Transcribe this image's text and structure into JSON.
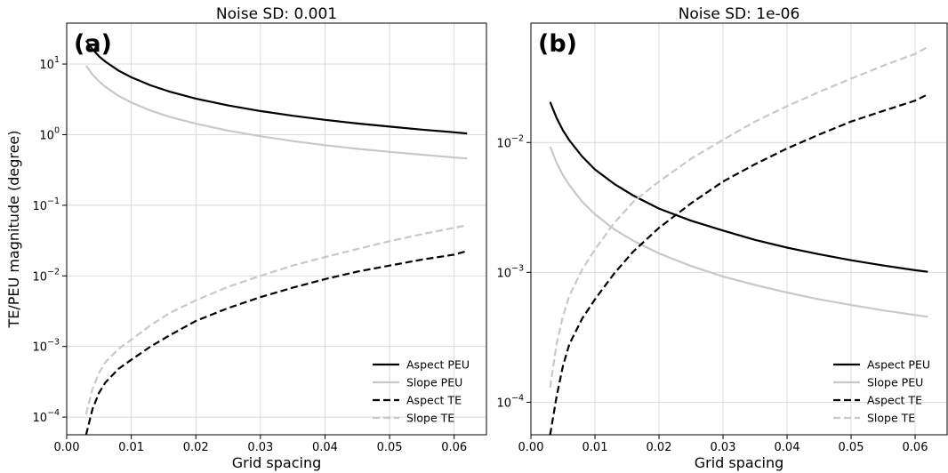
{
  "chart_data": [
    {
      "type": "line",
      "panel_label": "(a)",
      "title": "Noise SD: 0.001",
      "xlabel": "Grid spacing",
      "ylabel": "TE/PEU magnitude (degree)",
      "x_scale": "linear",
      "y_scale": "log",
      "xlim": [
        0.0,
        0.065
      ],
      "ylim": [
        5.62e-05,
        38
      ],
      "x_ticks": [
        "0.00",
        "0.01",
        "0.02",
        "0.03",
        "0.04",
        "0.05",
        "0.06"
      ],
      "x_tick_values": [
        0.0,
        0.01,
        0.02,
        0.03,
        0.04,
        0.05,
        0.06
      ],
      "y_ticks": [
        "10^1",
        "10^0",
        "10^-1",
        "10^-2",
        "10^-3",
        "10^-4"
      ],
      "y_tick_values": [
        10,
        1,
        0.1,
        0.01,
        0.001,
        0.0001
      ],
      "grid": true,
      "legend_position": "lower-right",
      "series": [
        {
          "name": "Aspect PEU",
          "color": "#000000",
          "dash": "solid",
          "x": [
            0.003,
            0.004,
            0.005,
            0.006,
            0.008,
            0.01,
            0.013,
            0.016,
            0.02,
            0.025,
            0.03,
            0.035,
            0.04,
            0.045,
            0.05,
            0.055,
            0.06,
            0.062
          ],
          "y": [
            21.5,
            16.2,
            12.9,
            10.8,
            8.1,
            6.5,
            5.0,
            4.05,
            3.24,
            2.59,
            2.16,
            1.85,
            1.62,
            1.44,
            1.3,
            1.18,
            1.08,
            1.04
          ]
        },
        {
          "name": "Slope PEU",
          "color": "#c8c8c8",
          "dash": "solid",
          "x": [
            0.003,
            0.004,
            0.005,
            0.006,
            0.008,
            0.01,
            0.013,
            0.016,
            0.02,
            0.025,
            0.03,
            0.035,
            0.04,
            0.045,
            0.05,
            0.055,
            0.06,
            0.062
          ],
          "y": [
            9.5,
            7.1,
            5.7,
            4.75,
            3.56,
            2.85,
            2.19,
            1.78,
            1.43,
            1.14,
            0.95,
            0.81,
            0.71,
            0.63,
            0.57,
            0.52,
            0.475,
            0.46
          ]
        },
        {
          "name": "Aspect TE",
          "color": "#000000",
          "dash": "dashed",
          "x": [
            0.003,
            0.004,
            0.005,
            0.006,
            0.008,
            0.01,
            0.013,
            0.016,
            0.02,
            0.025,
            0.03,
            0.035,
            0.04,
            0.045,
            0.05,
            0.055,
            0.06,
            0.062
          ],
          "y": [
            5.6e-05,
            0.00013,
            0.00022,
            0.00031,
            0.00048,
            0.00065,
            0.001,
            0.00145,
            0.0023,
            0.0035,
            0.005,
            0.0068,
            0.009,
            0.0115,
            0.014,
            0.017,
            0.02,
            0.0225
          ]
        },
        {
          "name": "Slope TE",
          "color": "#c8c8c8",
          "dash": "dashed",
          "x": [
            0.003,
            0.004,
            0.005,
            0.006,
            0.008,
            0.01,
            0.013,
            0.016,
            0.02,
            0.025,
            0.03,
            0.035,
            0.04,
            0.045,
            0.05,
            0.055,
            0.06,
            0.062
          ],
          "y": [
            0.00011,
            0.00025,
            0.00042,
            0.0006,
            0.00092,
            0.00125,
            0.002,
            0.003,
            0.0045,
            0.007,
            0.01,
            0.014,
            0.0185,
            0.024,
            0.031,
            0.039,
            0.048,
            0.052
          ]
        }
      ]
    },
    {
      "type": "line",
      "panel_label": "(b)",
      "title": "Noise SD: 1e-06",
      "xlabel": "Grid spacing",
      "ylabel": "",
      "x_scale": "linear",
      "y_scale": "log",
      "xlim": [
        0.0,
        0.065
      ],
      "ylim": [
        5.62e-05,
        0.083
      ],
      "x_ticks": [
        "0.00",
        "0.01",
        "0.02",
        "0.03",
        "0.04",
        "0.05",
        "0.06"
      ],
      "x_tick_values": [
        0.0,
        0.01,
        0.02,
        0.03,
        0.04,
        0.05,
        0.06
      ],
      "y_ticks": [
        "10^-2",
        "10^-3",
        "10^-4"
      ],
      "y_tick_values": [
        0.01,
        0.001,
        0.0001
      ],
      "grid": true,
      "legend_position": "lower-right",
      "series": [
        {
          "name": "Aspect PEU",
          "color": "#000000",
          "dash": "solid",
          "x": [
            0.003,
            0.004,
            0.005,
            0.006,
            0.008,
            0.01,
            0.013,
            0.016,
            0.02,
            0.025,
            0.03,
            0.035,
            0.04,
            0.045,
            0.05,
            0.055,
            0.06,
            0.062
          ],
          "y": [
            0.0205,
            0.0155,
            0.0124,
            0.0104,
            0.0078,
            0.0062,
            0.0048,
            0.0039,
            0.0031,
            0.0025,
            0.0021,
            0.00178,
            0.00155,
            0.00138,
            0.00124,
            0.00113,
            0.00104,
            0.00101
          ]
        },
        {
          "name": "Slope PEU",
          "color": "#c8c8c8",
          "dash": "solid",
          "x": [
            0.003,
            0.004,
            0.005,
            0.006,
            0.008,
            0.01,
            0.013,
            0.016,
            0.02,
            0.025,
            0.03,
            0.035,
            0.04,
            0.045,
            0.05,
            0.055,
            0.06,
            0.062
          ],
          "y": [
            0.0093,
            0.007,
            0.0056,
            0.0047,
            0.0035,
            0.0028,
            0.00215,
            0.00175,
            0.0014,
            0.00112,
            0.00093,
            0.0008,
            0.0007,
            0.00062,
            0.00056,
            0.00051,
            0.00047,
            0.000455
          ]
        },
        {
          "name": "Aspect TE",
          "color": "#000000",
          "dash": "dashed",
          "x": [
            0.003,
            0.004,
            0.005,
            0.006,
            0.008,
            0.01,
            0.013,
            0.016,
            0.02,
            0.025,
            0.03,
            0.035,
            0.04,
            0.045,
            0.05,
            0.055,
            0.06,
            0.062
          ],
          "y": [
            5.6e-05,
            0.00011,
            0.00019,
            0.00028,
            0.00044,
            0.00062,
            0.00098,
            0.00145,
            0.0022,
            0.0034,
            0.005,
            0.0068,
            0.009,
            0.0115,
            0.0145,
            0.0175,
            0.021,
            0.0235
          ]
        },
        {
          "name": "Slope TE",
          "color": "#c8c8c8",
          "dash": "dashed",
          "x": [
            0.003,
            0.004,
            0.005,
            0.006,
            0.008,
            0.01,
            0.013,
            0.016,
            0.02,
            0.025,
            0.03,
            0.035,
            0.04,
            0.045,
            0.05,
            0.055,
            0.06,
            0.062
          ],
          "y": [
            0.00013,
            0.00028,
            0.00046,
            0.00066,
            0.00105,
            0.0015,
            0.0024,
            0.0035,
            0.005,
            0.0075,
            0.0105,
            0.0145,
            0.019,
            0.0245,
            0.031,
            0.039,
            0.048,
            0.0545
          ]
        }
      ]
    }
  ]
}
